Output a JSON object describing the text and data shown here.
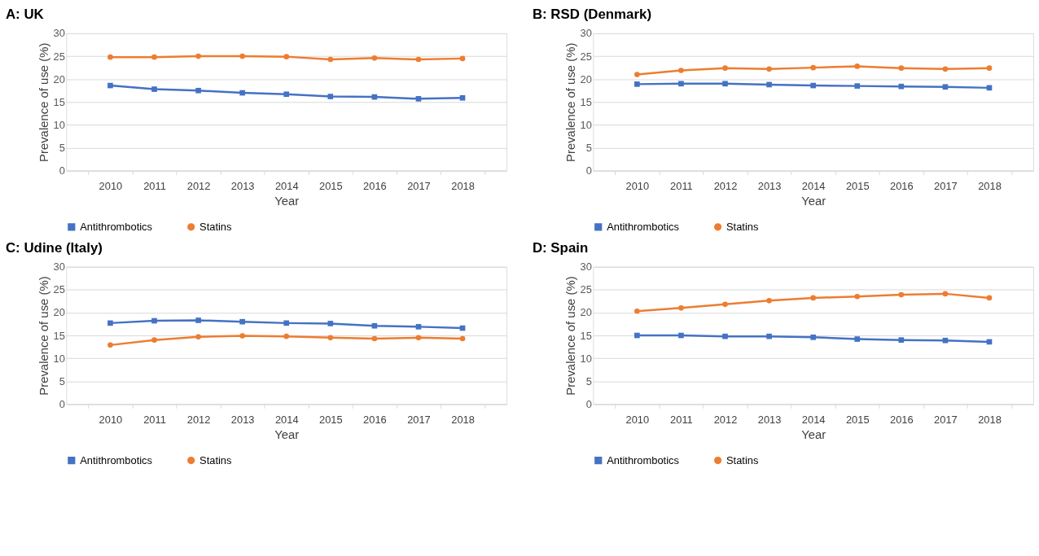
{
  "chart_data": [
    {
      "type": "line",
      "title": "A: UK",
      "xlabel": "Year",
      "ylabel": "Prevalence of use (%)",
      "categories": [
        "2010",
        "2011",
        "2012",
        "2013",
        "2014",
        "2015",
        "2016",
        "2017",
        "2018"
      ],
      "ylim": [
        0,
        30
      ],
      "yticks": [
        0,
        5,
        10,
        15,
        20,
        25,
        30
      ],
      "grid": "y",
      "legend": "bottom",
      "series": [
        {
          "name": "Antithrombotics",
          "color": "#4472c4",
          "marker": "square",
          "values": [
            18.6,
            17.8,
            17.5,
            17.0,
            16.7,
            16.2,
            16.1,
            15.7,
            15.9
          ]
        },
        {
          "name": "Statins",
          "color": "#ed7d31",
          "marker": "circle",
          "values": [
            24.8,
            24.8,
            25.0,
            25.0,
            24.9,
            24.3,
            24.6,
            24.3,
            24.5
          ]
        }
      ]
    },
    {
      "type": "line",
      "title": "B: RSD (Denmark)",
      "xlabel": "Year",
      "ylabel": "Prevalence of use (%)",
      "categories": [
        "2010",
        "2011",
        "2012",
        "2013",
        "2014",
        "2015",
        "2016",
        "2017",
        "2018"
      ],
      "ylim": [
        0,
        30
      ],
      "yticks": [
        0,
        5,
        10,
        15,
        20,
        25,
        30
      ],
      "grid": "y",
      "legend": "bottom",
      "series": [
        {
          "name": "Antithrombotics",
          "color": "#4472c4",
          "marker": "square",
          "values": [
            18.9,
            19.0,
            19.0,
            18.8,
            18.6,
            18.5,
            18.4,
            18.3,
            18.1
          ]
        },
        {
          "name": "Statins",
          "color": "#ed7d31",
          "marker": "circle",
          "values": [
            21.0,
            21.9,
            22.4,
            22.2,
            22.5,
            22.8,
            22.4,
            22.2,
            22.4
          ]
        }
      ]
    },
    {
      "type": "line",
      "title": "C: Udine (Italy)",
      "xlabel": "Year",
      "ylabel": "Prevalence of use (%)",
      "categories": [
        "2010",
        "2011",
        "2012",
        "2013",
        "2014",
        "2015",
        "2016",
        "2017",
        "2018"
      ],
      "ylim": [
        0,
        30
      ],
      "yticks": [
        0,
        5,
        10,
        15,
        20,
        25,
        30
      ],
      "grid": "y",
      "legend": "bottom",
      "series": [
        {
          "name": "Antithrombotics",
          "color": "#4472c4",
          "marker": "square",
          "values": [
            17.7,
            18.2,
            18.3,
            18.0,
            17.7,
            17.6,
            17.1,
            16.9,
            16.6
          ]
        },
        {
          "name": "Statins",
          "color": "#ed7d31",
          "marker": "circle",
          "values": [
            12.9,
            14.0,
            14.7,
            14.9,
            14.8,
            14.5,
            14.3,
            14.5,
            14.3
          ]
        }
      ]
    },
    {
      "type": "line",
      "title": "D: Spain",
      "xlabel": "Year",
      "ylabel": "Prevalence of use (%)",
      "categories": [
        "2010",
        "2011",
        "2012",
        "2013",
        "2014",
        "2015",
        "2016",
        "2017",
        "2018"
      ],
      "ylim": [
        0,
        30
      ],
      "yticks": [
        0,
        5,
        10,
        15,
        20,
        25,
        30
      ],
      "grid": "y",
      "legend": "bottom",
      "series": [
        {
          "name": "Antithrombotics",
          "color": "#4472c4",
          "marker": "square",
          "values": [
            15.0,
            15.0,
            14.8,
            14.8,
            14.6,
            14.2,
            14.0,
            13.9,
            13.6
          ]
        },
        {
          "name": "Statins",
          "color": "#ed7d31",
          "marker": "circle",
          "values": [
            20.3,
            21.0,
            21.8,
            22.6,
            23.2,
            23.5,
            23.9,
            24.1,
            23.2
          ]
        }
      ]
    }
  ]
}
